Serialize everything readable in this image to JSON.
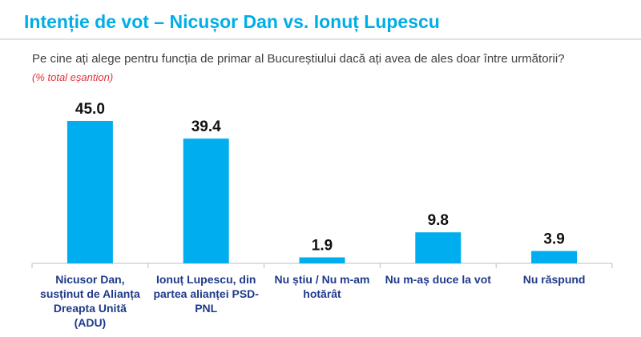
{
  "header": {
    "title": "Intenție de vot – Nicușor Dan vs. Ionuț Lupescu"
  },
  "question": {
    "text": "Pe cine ați alege pentru funcția de primar al Bucureștiului dacă ați avea de ales doar între următorii?",
    "note": "(% total eșantion)"
  },
  "colors": {
    "bar": "#00aeef",
    "title": "#00aee6",
    "axis": "#bdbdbd",
    "note": "#e0303a"
  },
  "chart_data": {
    "type": "bar",
    "categories": [
      [
        "Nicusor Dan,",
        "susținut de Alianța",
        "Dreapta Unită",
        "(ADU)"
      ],
      [
        "Ionuț Lupescu, din",
        "partea alianței PSD-",
        "PNL"
      ],
      [
        "Nu știu / Nu m-am",
        "hotărât"
      ],
      [
        "Nu m-aș duce la vot"
      ],
      [
        "Nu răspund"
      ]
    ],
    "values": [
      45.0,
      39.4,
      1.9,
      9.8,
      3.9
    ],
    "data_labels": [
      "45.0",
      "39.4",
      "1.9",
      "9.8",
      "3.9"
    ],
    "ylim": [
      0,
      45.0
    ],
    "grid": false,
    "legend": "none"
  }
}
